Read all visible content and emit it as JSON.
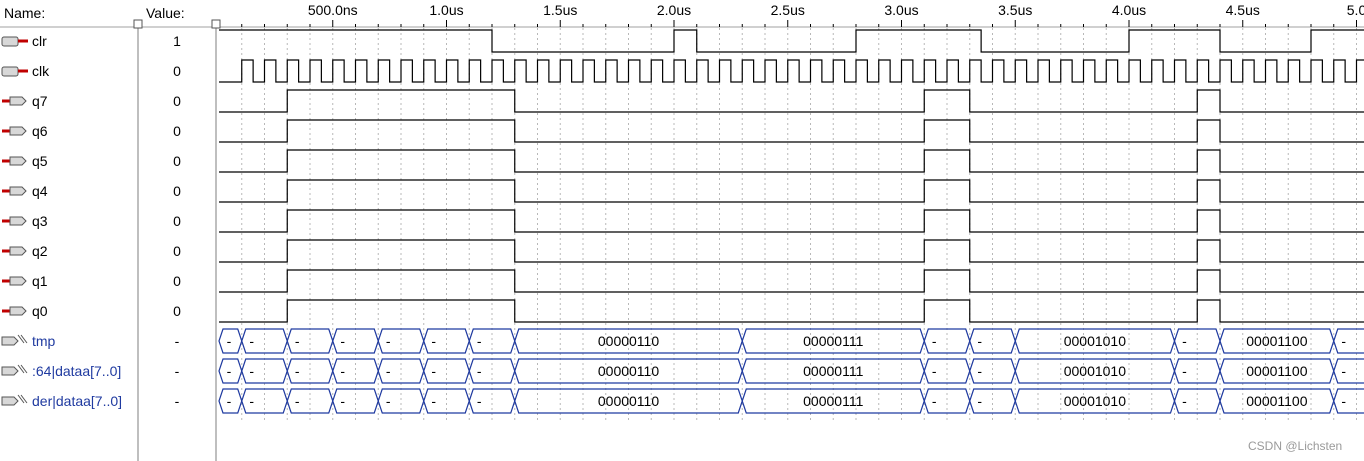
{
  "header": {
    "name_label": "Name:",
    "value_label": "Value:"
  },
  "time_axis": {
    "ticks": [
      {
        "t": 500,
        "label": "500.0ns"
      },
      {
        "t": 1000,
        "label": "1.0us"
      },
      {
        "t": 1500,
        "label": "1.5us"
      },
      {
        "t": 2000,
        "label": "2.0us"
      },
      {
        "t": 2500,
        "label": "2.5us"
      },
      {
        "t": 3000,
        "label": "3.0us"
      },
      {
        "t": 3500,
        "label": "3.5us"
      },
      {
        "t": 4000,
        "label": "4.0us"
      },
      {
        "t": 4500,
        "label": "4.5us"
      },
      {
        "t": 5000,
        "label": "5.0"
      }
    ]
  },
  "signals": [
    {
      "name": "clr",
      "value": "1",
      "kind": "input"
    },
    {
      "name": "clk",
      "value": "0",
      "kind": "input"
    },
    {
      "name": "q7",
      "value": "0",
      "kind": "output"
    },
    {
      "name": "q6",
      "value": "0",
      "kind": "output"
    },
    {
      "name": "q5",
      "value": "0",
      "kind": "output"
    },
    {
      "name": "q4",
      "value": "0",
      "kind": "output"
    },
    {
      "name": "q3",
      "value": "0",
      "kind": "output"
    },
    {
      "name": "q2",
      "value": "0",
      "kind": "output"
    },
    {
      "name": "q1",
      "value": "0",
      "kind": "output"
    },
    {
      "name": "q0",
      "value": "0",
      "kind": "output"
    },
    {
      "name": "tmp",
      "value": "-",
      "kind": "bus"
    },
    {
      "name": ":64|dataa[7..0]",
      "value": "-",
      "kind": "bus"
    },
    {
      "name": "der|dataa[7..0]",
      "value": "-",
      "kind": "bus"
    }
  ],
  "waveforms": {
    "clr": {
      "initial": 1,
      "transitions": [
        1200,
        2000,
        2100,
        2800,
        3350,
        4000,
        4400,
        4800
      ]
    },
    "clk": {
      "initial": 0,
      "period": 100,
      "start": 100,
      "high_first": true
    },
    "q_bits": {
      "initial": 0,
      "transitions": [
        300,
        1300,
        3100,
        3300,
        4300,
        4400
      ]
    },
    "bus_segments": [
      {
        "from": 0,
        "to": 100,
        "label": "-"
      },
      {
        "from": 100,
        "to": 300,
        "label": "-"
      },
      {
        "from": 300,
        "to": 500,
        "label": "-"
      },
      {
        "from": 500,
        "to": 700,
        "label": "-"
      },
      {
        "from": 700,
        "to": 900,
        "label": "-"
      },
      {
        "from": 900,
        "to": 1100,
        "label": "-"
      },
      {
        "from": 1100,
        "to": 1300,
        "label": "-"
      },
      {
        "from": 1300,
        "to": 2300,
        "label": "00000110"
      },
      {
        "from": 2300,
        "to": 3100,
        "label": "00000111"
      },
      {
        "from": 3100,
        "to": 3300,
        "label": "-"
      },
      {
        "from": 3300,
        "to": 3500,
        "label": "-"
      },
      {
        "from": 3500,
        "to": 4200,
        "label": "00001010"
      },
      {
        "from": 4200,
        "to": 4400,
        "label": "-"
      },
      {
        "from": 4400,
        "to": 4900,
        "label": "00001100"
      },
      {
        "from": 4900,
        "to": 5100,
        "label": "-"
      }
    ]
  },
  "watermark": "CSDN @Lichsten",
  "colors": {
    "wave": "#000000",
    "bus": "#1f3aa0",
    "grid": "#b8b8b8",
    "divider": "#7f7f7f"
  }
}
